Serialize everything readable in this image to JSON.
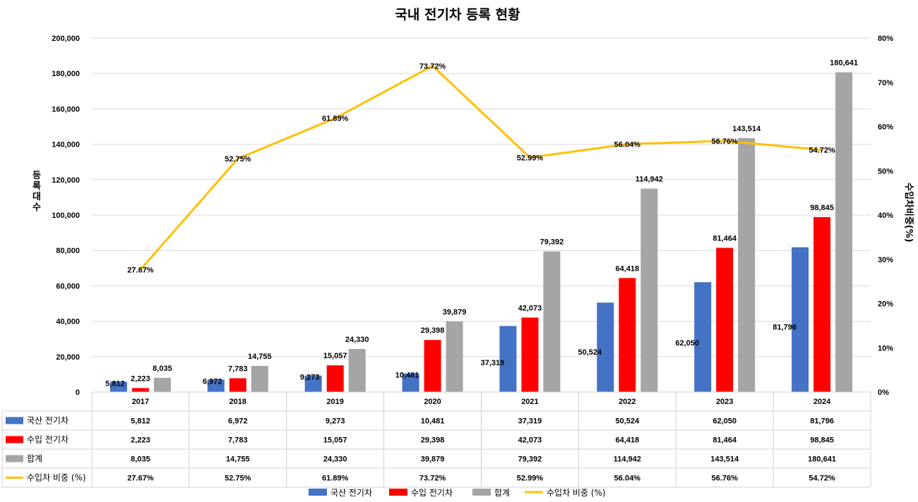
{
  "chart_data": {
    "type": "bar+line",
    "title": "국내 전기차 등록 현황",
    "categories": [
      "2017",
      "2018",
      "2019",
      "2020",
      "2021",
      "2022",
      "2023",
      "2024"
    ],
    "series": [
      {
        "name": "국산 전기차",
        "type": "bar",
        "axis": "left",
        "color": "#4472c4",
        "values": [
          5812,
          6972,
          9273,
          10481,
          37319,
          50524,
          62050,
          81796
        ],
        "labels": [
          "5,812",
          "6,972",
          "9,273",
          "10,481",
          "37,319",
          "50,524",
          "62,050",
          "81,796"
        ]
      },
      {
        "name": "수입 전기차",
        "type": "bar",
        "axis": "left",
        "color": "#ff0000",
        "values": [
          2223,
          7783,
          15057,
          29398,
          42073,
          64418,
          81464,
          98845
        ],
        "labels": [
          "2,223",
          "7,783",
          "15,057",
          "29,398",
          "42,073",
          "64,418",
          "81,464",
          "98,845"
        ]
      },
      {
        "name": "합계",
        "type": "bar",
        "axis": "left",
        "color": "#a5a5a5",
        "values": [
          8035,
          14755,
          24330,
          39879,
          79392,
          114942,
          143514,
          180641
        ],
        "labels": [
          "8,035",
          "14,755",
          "24,330",
          "39,879",
          "79,392",
          "114,942",
          "143,514",
          "180,641"
        ]
      },
      {
        "name": "수입차 비중 (%)",
        "type": "line",
        "axis": "right",
        "color": "#ffc000",
        "values": [
          27.67,
          52.75,
          61.89,
          73.72,
          52.99,
          56.04,
          56.76,
          54.72
        ],
        "labels": [
          "27.67%",
          "52.75%",
          "61.89%",
          "73.72%",
          "52.99%",
          "56.04%",
          "56.76%",
          "54.72%"
        ]
      }
    ],
    "ylabel": "등록 대수",
    "y2label": "수입차 비중(%)",
    "ylim": [
      0,
      200000
    ],
    "y2lim": [
      0,
      80
    ],
    "yticks": [
      "0",
      "20,000",
      "40,000",
      "60,000",
      "80,000",
      "100,000",
      "120,000",
      "140,000",
      "160,000",
      "180,000",
      "200,000"
    ],
    "y2ticks": [
      "0%",
      "10%",
      "20%",
      "30%",
      "40%",
      "50%",
      "60%",
      "70%",
      "80%"
    ],
    "grid": true,
    "legend": "bottom",
    "data_table": true
  }
}
